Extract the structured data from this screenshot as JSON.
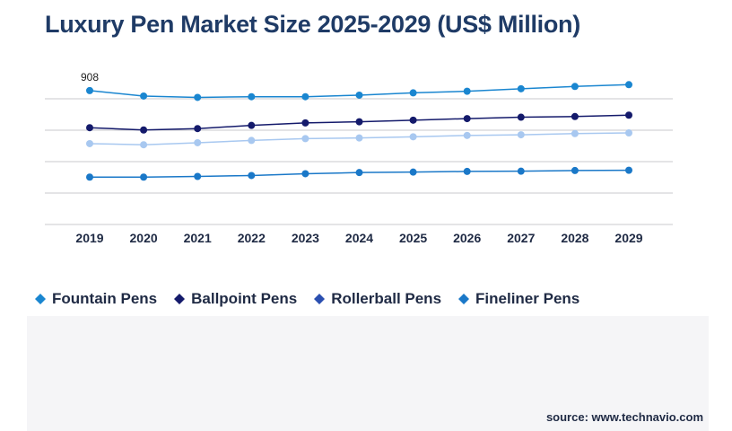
{
  "title": "Luxury Pen Market Size 2025-2029 (US$ Million)",
  "source": "source: www.technavio.com",
  "colors": {
    "title": "#1f3b66",
    "grid": "#c8c8cc",
    "text": "#1f2a44"
  },
  "chart_data": {
    "type": "line",
    "title": "Luxury Pen Market Size 2025-2029 (US$ Million)",
    "xlabel": "",
    "ylabel": "",
    "x": [
      "2019",
      "2020",
      "2021",
      "2022",
      "2023",
      "2024",
      "2025",
      "2026",
      "2027",
      "2028",
      "2029"
    ],
    "ylim": [
      320,
      1010
    ],
    "grid": true,
    "legend_position": "bottom",
    "annotations": [
      {
        "series": 0,
        "index": 0,
        "text": "908"
      }
    ],
    "series": [
      {
        "name": "Fountain Pens",
        "color": "#1a86d0",
        "values": [
          908,
          884,
          878,
          881,
          881,
          888,
          898,
          905,
          916,
          926,
          934
        ]
      },
      {
        "name": "Ballpoint Pens",
        "color": "#141a6b",
        "values": [
          745,
          735,
          741,
          755,
          766,
          771,
          778,
          785,
          791,
          794,
          800
        ]
      },
      {
        "name": "Rollerball Pens",
        "color": "#a8c8f0",
        "values": [
          675,
          670,
          679,
          689,
          697,
          700,
          705,
          711,
          714,
          719,
          722
        ]
      },
      {
        "name": "Fineliner Pens",
        "color": "#1a78c8",
        "values": [
          528,
          528,
          531,
          535,
          543,
          548,
          550,
          553,
          554,
          557,
          558
        ]
      }
    ]
  },
  "legend": [
    {
      "label": "Fountain Pens",
      "color": "#1a86d0"
    },
    {
      "label": "Ballpoint Pens",
      "color": "#141a6b"
    },
    {
      "label": "Rollerball Pens",
      "color": "#2a4fb0"
    },
    {
      "label": "Fineliner Pens",
      "color": "#1a78c8"
    }
  ]
}
